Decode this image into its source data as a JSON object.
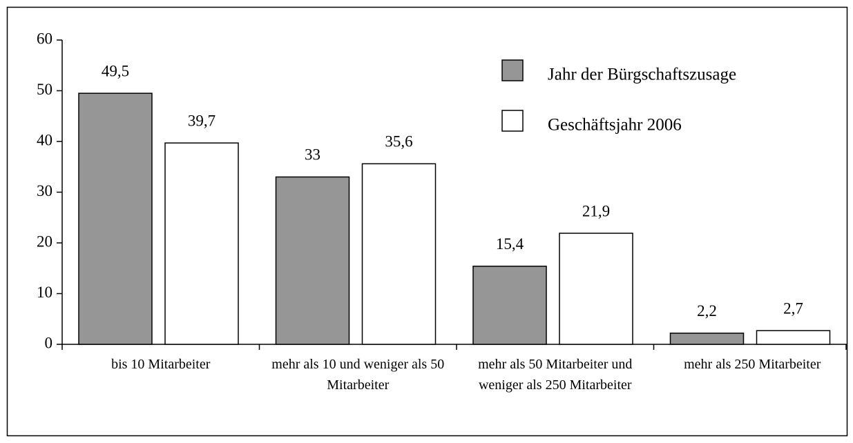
{
  "chart_data": {
    "type": "bar",
    "categories": [
      "bis 10 Mitarbeiter",
      "mehr als 10 und weniger als 50 Mitarbeiter",
      "mehr als 50 Mitarbeiter und weniger als 250 Mitarbeiter",
      "mehr als 250 Mitarbeiter"
    ],
    "series": [
      {
        "name": "Jahr der Bürgschaftszusage",
        "color": "#969696",
        "values": [
          49.5,
          33,
          15.4,
          2.2
        ],
        "value_labels": [
          "49,5",
          "33",
          "15,4",
          "2,2"
        ]
      },
      {
        "name": "Geschäftsjahr 2006",
        "color": "#ffffff",
        "values": [
          39.7,
          35.6,
          21.9,
          2.7
        ],
        "value_labels": [
          "39,7",
          "35,6",
          "21,9",
          "2,7"
        ]
      }
    ],
    "ylim": [
      0,
      60
    ],
    "yticks": [
      0,
      10,
      20,
      30,
      40,
      50,
      60
    ],
    "grid": false,
    "legend": "upper right"
  }
}
